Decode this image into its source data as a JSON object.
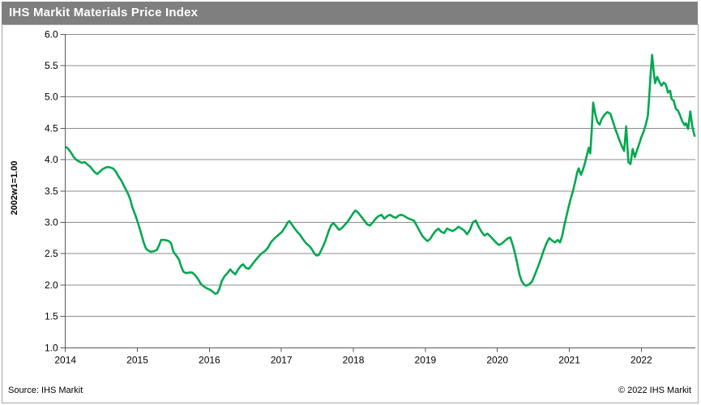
{
  "header": {
    "title": "IHS Markit Materials Price Index"
  },
  "footer": {
    "source": "Source: IHS Markit",
    "copyright": "© 2022 IHS Markit"
  },
  "colors": {
    "titlebar_bg": "#7f7f7f",
    "title_text": "#ffffff",
    "line": "#00a84f",
    "grid": "#8c8c8c",
    "axis": "#595959",
    "frame_border": "#a6a6a6",
    "text": "#000000"
  },
  "chart_data": {
    "type": "line",
    "title": "IHS Markit Materials Price Index",
    "xlabel": "",
    "ylabel": "2002w1=1.00",
    "xlim": [
      2014,
      2022.75
    ],
    "ylim": [
      1.0,
      6.0
    ],
    "grid": "horizontal",
    "legend": "none",
    "xtick_values": [
      2014,
      2015,
      2016,
      2017,
      2018,
      2019,
      2020,
      2021,
      2022
    ],
    "xtick_labels": [
      "2014",
      "2015",
      "2016",
      "2017",
      "2018",
      "2019",
      "2020",
      "2021",
      "2022"
    ],
    "ytick_values": [
      1.0,
      1.5,
      2.0,
      2.5,
      3.0,
      3.5,
      4.0,
      4.5,
      5.0,
      5.5,
      6.0
    ],
    "ytick_labels": [
      "1.0",
      "1.5",
      "2.0",
      "2.5",
      "3.0",
      "3.5",
      "4.0",
      "4.5",
      "5.0",
      "5.5",
      "6.0"
    ],
    "series": [
      {
        "name": "IHS Markit Materials Price Index",
        "color": "#00a84f",
        "points": [
          [
            2014.01,
            4.2
          ],
          [
            2014.04,
            4.17
          ],
          [
            2014.08,
            4.11
          ],
          [
            2014.11,
            4.05
          ],
          [
            2014.15,
            4.0
          ],
          [
            2014.19,
            3.97
          ],
          [
            2014.23,
            3.95
          ],
          [
            2014.27,
            3.96
          ],
          [
            2014.31,
            3.92
          ],
          [
            2014.35,
            3.88
          ],
          [
            2014.4,
            3.81
          ],
          [
            2014.44,
            3.77
          ],
          [
            2014.48,
            3.81
          ],
          [
            2014.52,
            3.85
          ],
          [
            2014.57,
            3.88
          ],
          [
            2014.61,
            3.88
          ],
          [
            2014.66,
            3.86
          ],
          [
            2014.7,
            3.81
          ],
          [
            2014.74,
            3.73
          ],
          [
            2014.78,
            3.66
          ],
          [
            2014.82,
            3.57
          ],
          [
            2014.86,
            3.48
          ],
          [
            2014.9,
            3.37
          ],
          [
            2014.93,
            3.24
          ],
          [
            2014.97,
            3.12
          ],
          [
            2015.0,
            3.02
          ],
          [
            2015.03,
            2.91
          ],
          [
            2015.06,
            2.79
          ],
          [
            2015.09,
            2.67
          ],
          [
            2015.12,
            2.58
          ],
          [
            2015.15,
            2.55
          ],
          [
            2015.19,
            2.53
          ],
          [
            2015.23,
            2.54
          ],
          [
            2015.27,
            2.56
          ],
          [
            2015.3,
            2.63
          ],
          [
            2015.33,
            2.72
          ],
          [
            2015.37,
            2.72
          ],
          [
            2015.41,
            2.71
          ],
          [
            2015.44,
            2.7
          ],
          [
            2015.47,
            2.66
          ],
          [
            2015.5,
            2.53
          ],
          [
            2015.54,
            2.47
          ],
          [
            2015.58,
            2.4
          ],
          [
            2015.61,
            2.29
          ],
          [
            2015.64,
            2.21
          ],
          [
            2015.68,
            2.19
          ],
          [
            2015.72,
            2.2
          ],
          [
            2015.76,
            2.2
          ],
          [
            2015.8,
            2.16
          ],
          [
            2015.84,
            2.1
          ],
          [
            2015.88,
            2.02
          ],
          [
            2015.92,
            1.98
          ],
          [
            2015.96,
            1.95
          ],
          [
            2016.0,
            1.93
          ],
          [
            2016.04,
            1.9
          ],
          [
            2016.08,
            1.86
          ],
          [
            2016.11,
            1.87
          ],
          [
            2016.14,
            1.94
          ],
          [
            2016.17,
            2.06
          ],
          [
            2016.21,
            2.14
          ],
          [
            2016.25,
            2.19
          ],
          [
            2016.29,
            2.25
          ],
          [
            2016.32,
            2.21
          ],
          [
            2016.36,
            2.17
          ],
          [
            2016.4,
            2.25
          ],
          [
            2016.44,
            2.31
          ],
          [
            2016.47,
            2.33
          ],
          [
            2016.51,
            2.27
          ],
          [
            2016.55,
            2.26
          ],
          [
            2016.59,
            2.32
          ],
          [
            2016.63,
            2.38
          ],
          [
            2016.68,
            2.45
          ],
          [
            2016.72,
            2.5
          ],
          [
            2016.77,
            2.54
          ],
          [
            2016.81,
            2.59
          ],
          [
            2016.86,
            2.69
          ],
          [
            2016.91,
            2.75
          ],
          [
            2016.96,
            2.8
          ],
          [
            2017.01,
            2.85
          ],
          [
            2017.05,
            2.92
          ],
          [
            2017.09,
            3.0
          ],
          [
            2017.11,
            3.02
          ],
          [
            2017.15,
            2.96
          ],
          [
            2017.18,
            2.91
          ],
          [
            2017.22,
            2.85
          ],
          [
            2017.26,
            2.8
          ],
          [
            2017.3,
            2.73
          ],
          [
            2017.34,
            2.67
          ],
          [
            2017.37,
            2.64
          ],
          [
            2017.4,
            2.61
          ],
          [
            2017.43,
            2.56
          ],
          [
            2017.46,
            2.5
          ],
          [
            2017.49,
            2.47
          ],
          [
            2017.52,
            2.48
          ],
          [
            2017.56,
            2.57
          ],
          [
            2017.6,
            2.67
          ],
          [
            2017.63,
            2.77
          ],
          [
            2017.66,
            2.87
          ],
          [
            2017.69,
            2.95
          ],
          [
            2017.72,
            2.99
          ],
          [
            2017.76,
            2.94
          ],
          [
            2017.8,
            2.88
          ],
          [
            2017.84,
            2.91
          ],
          [
            2017.88,
            2.96
          ],
          [
            2017.92,
            3.01
          ],
          [
            2017.96,
            3.08
          ],
          [
            2018.0,
            3.15
          ],
          [
            2018.03,
            3.19
          ],
          [
            2018.07,
            3.15
          ],
          [
            2018.11,
            3.09
          ],
          [
            2018.15,
            3.03
          ],
          [
            2018.19,
            2.97
          ],
          [
            2018.23,
            2.95
          ],
          [
            2018.27,
            3.0
          ],
          [
            2018.31,
            3.06
          ],
          [
            2018.35,
            3.1
          ],
          [
            2018.39,
            3.12
          ],
          [
            2018.43,
            3.06
          ],
          [
            2018.47,
            3.1
          ],
          [
            2018.51,
            3.12
          ],
          [
            2018.55,
            3.09
          ],
          [
            2018.59,
            3.07
          ],
          [
            2018.63,
            3.11
          ],
          [
            2018.67,
            3.12
          ],
          [
            2018.71,
            3.1
          ],
          [
            2018.75,
            3.07
          ],
          [
            2018.79,
            3.05
          ],
          [
            2018.84,
            3.03
          ],
          [
            2018.88,
            2.95
          ],
          [
            2018.92,
            2.86
          ],
          [
            2018.96,
            2.78
          ],
          [
            2019.0,
            2.73
          ],
          [
            2019.03,
            2.7
          ],
          [
            2019.07,
            2.74
          ],
          [
            2019.1,
            2.8
          ],
          [
            2019.14,
            2.86
          ],
          [
            2019.18,
            2.9
          ],
          [
            2019.22,
            2.85
          ],
          [
            2019.26,
            2.83
          ],
          [
            2019.3,
            2.9
          ],
          [
            2019.34,
            2.88
          ],
          [
            2019.38,
            2.86
          ],
          [
            2019.42,
            2.89
          ],
          [
            2019.46,
            2.93
          ],
          [
            2019.5,
            2.9
          ],
          [
            2019.54,
            2.87
          ],
          [
            2019.58,
            2.81
          ],
          [
            2019.62,
            2.88
          ],
          [
            2019.66,
            3.0
          ],
          [
            2019.7,
            3.03
          ],
          [
            2019.74,
            2.93
          ],
          [
            2019.78,
            2.85
          ],
          [
            2019.82,
            2.79
          ],
          [
            2019.86,
            2.82
          ],
          [
            2019.9,
            2.78
          ],
          [
            2019.94,
            2.73
          ],
          [
            2019.98,
            2.68
          ],
          [
            2020.02,
            2.64
          ],
          [
            2020.06,
            2.66
          ],
          [
            2020.1,
            2.7
          ],
          [
            2020.14,
            2.74
          ],
          [
            2020.18,
            2.76
          ],
          [
            2020.22,
            2.62
          ],
          [
            2020.25,
            2.48
          ],
          [
            2020.28,
            2.32
          ],
          [
            2020.31,
            2.16
          ],
          [
            2020.34,
            2.06
          ],
          [
            2020.37,
            2.01
          ],
          [
            2020.4,
            1.99
          ],
          [
            2020.44,
            2.01
          ],
          [
            2020.48,
            2.05
          ],
          [
            2020.52,
            2.16
          ],
          [
            2020.56,
            2.28
          ],
          [
            2020.6,
            2.4
          ],
          [
            2020.64,
            2.54
          ],
          [
            2020.68,
            2.66
          ],
          [
            2020.72,
            2.75
          ],
          [
            2020.76,
            2.71
          ],
          [
            2020.8,
            2.68
          ],
          [
            2020.84,
            2.72
          ],
          [
            2020.87,
            2.68
          ],
          [
            2020.9,
            2.78
          ],
          [
            2020.93,
            2.95
          ],
          [
            2020.96,
            3.1
          ],
          [
            2020.99,
            3.25
          ],
          [
            2021.02,
            3.38
          ],
          [
            2021.05,
            3.5
          ],
          [
            2021.08,
            3.64
          ],
          [
            2021.11,
            3.8
          ],
          [
            2021.13,
            3.86
          ],
          [
            2021.16,
            3.76
          ],
          [
            2021.19,
            3.84
          ],
          [
            2021.22,
            3.96
          ],
          [
            2021.25,
            4.1
          ],
          [
            2021.27,
            4.19
          ],
          [
            2021.29,
            4.1
          ],
          [
            2021.31,
            4.45
          ],
          [
            2021.33,
            4.91
          ],
          [
            2021.36,
            4.73
          ],
          [
            2021.39,
            4.6
          ],
          [
            2021.42,
            4.56
          ],
          [
            2021.45,
            4.65
          ],
          [
            2021.49,
            4.72
          ],
          [
            2021.53,
            4.76
          ],
          [
            2021.57,
            4.73
          ],
          [
            2021.6,
            4.63
          ],
          [
            2021.63,
            4.52
          ],
          [
            2021.66,
            4.42
          ],
          [
            2021.69,
            4.33
          ],
          [
            2021.72,
            4.24
          ],
          [
            2021.76,
            4.14
          ],
          [
            2021.79,
            4.53
          ],
          [
            2021.82,
            3.96
          ],
          [
            2021.85,
            3.93
          ],
          [
            2021.88,
            4.17
          ],
          [
            2021.91,
            4.04
          ],
          [
            2021.94,
            4.15
          ],
          [
            2021.97,
            4.25
          ],
          [
            2022.0,
            4.36
          ],
          [
            2022.03,
            4.44
          ],
          [
            2022.06,
            4.55
          ],
          [
            2022.09,
            4.7
          ],
          [
            2022.11,
            5.0
          ],
          [
            2022.13,
            5.38
          ],
          [
            2022.15,
            5.67
          ],
          [
            2022.17,
            5.42
          ],
          [
            2022.19,
            5.22
          ],
          [
            2022.22,
            5.32
          ],
          [
            2022.25,
            5.24
          ],
          [
            2022.28,
            5.18
          ],
          [
            2022.31,
            5.23
          ],
          [
            2022.34,
            5.2
          ],
          [
            2022.37,
            5.07
          ],
          [
            2022.4,
            5.1
          ],
          [
            2022.42,
            4.97
          ],
          [
            2022.45,
            4.94
          ],
          [
            2022.48,
            4.81
          ],
          [
            2022.51,
            4.78
          ],
          [
            2022.54,
            4.7
          ],
          [
            2022.57,
            4.61
          ],
          [
            2022.6,
            4.55
          ],
          [
            2022.62,
            4.58
          ],
          [
            2022.65,
            4.49
          ],
          [
            2022.68,
            4.77
          ],
          [
            2022.71,
            4.52
          ],
          [
            2022.74,
            4.38
          ]
        ]
      }
    ]
  }
}
